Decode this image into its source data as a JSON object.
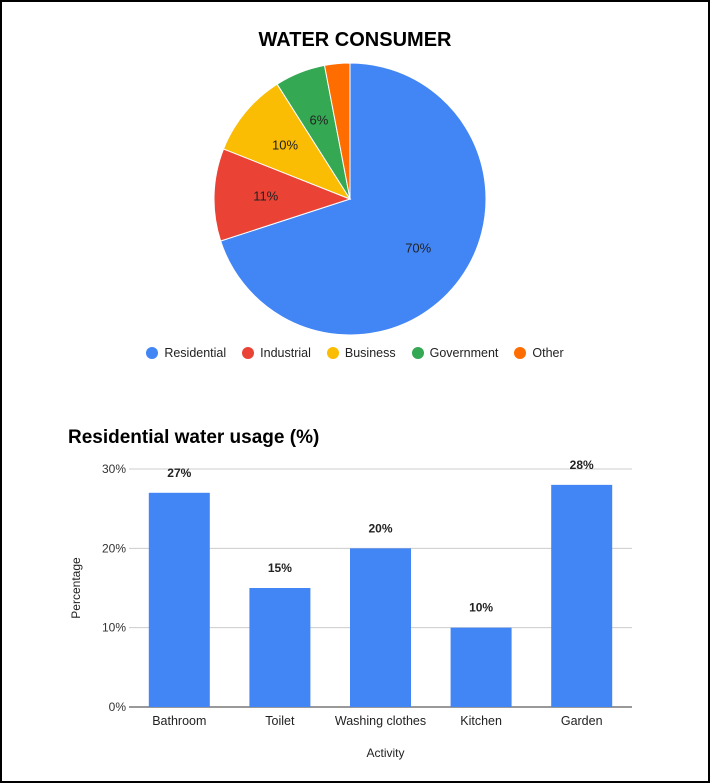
{
  "chart_data": [
    {
      "type": "pie",
      "title": "WATER CONSUMER",
      "categories": [
        "Residential",
        "Industrial",
        "Business",
        "Government",
        "Other"
      ],
      "values": [
        70,
        11,
        10,
        6,
        3
      ],
      "slice_labels": [
        "70%",
        "11%",
        "10%",
        "6%",
        ""
      ],
      "colors": [
        "#4285f4",
        "#ea4335",
        "#fbbc04",
        "#34a853",
        "#ff6d01"
      ],
      "legend": "bottom"
    },
    {
      "type": "bar",
      "title": "Residential water usage (%)",
      "categories": [
        "Bathroom",
        "Toilet",
        "Washing clothes",
        "Kitchen",
        "Garden"
      ],
      "values": [
        27,
        15,
        20,
        10,
        28
      ],
      "data_labels": [
        "27%",
        "15%",
        "20%",
        "10%",
        "28%"
      ],
      "xlabel": "Activity",
      "ylabel": "Percentage",
      "ylim": [
        0,
        30
      ],
      "yticks": [
        "0%",
        "10%",
        "20%",
        "30%"
      ],
      "color": "#4285f4",
      "grid": true
    }
  ]
}
